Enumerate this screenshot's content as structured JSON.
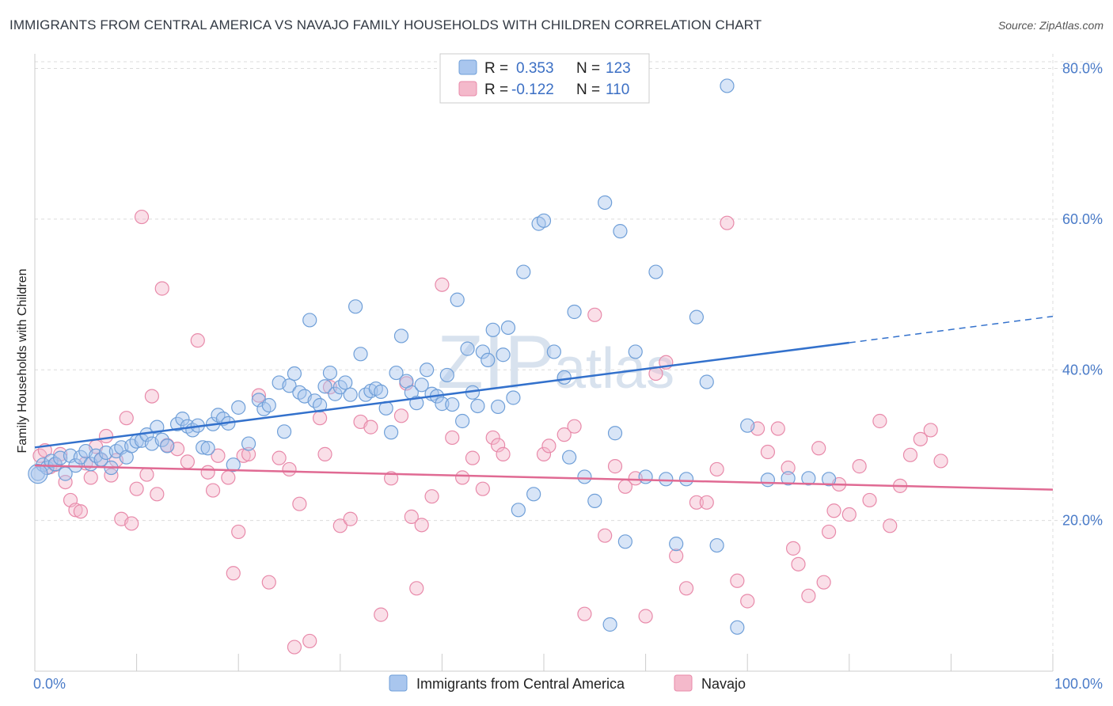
{
  "title": "IMMIGRANTS FROM CENTRAL AMERICA VS NAVAJO FAMILY HOUSEHOLDS WITH CHILDREN CORRELATION CHART",
  "source": "Source: ZipAtlas.com",
  "watermark": {
    "zip": "ZIP",
    "atlas": "atlas"
  },
  "colors": {
    "blue_fill": "#a9c6ee",
    "blue_stroke": "#6f9fd8",
    "blue_line": "#3371cc",
    "pink_fill": "#f4b9cb",
    "pink_stroke": "#e88aaa",
    "pink_line": "#e06a93",
    "grid": "#dcdcdc",
    "axis_label": "#4a7bc8"
  },
  "legend": {
    "rows": [
      {
        "r_label": "R =",
        "r_value": "0.353",
        "n_label": "N =",
        "n_value": "123"
      },
      {
        "r_label": "R =",
        "r_value": "-0.122",
        "n_label": "N =",
        "n_value": "110"
      }
    ]
  },
  "chart_data": {
    "type": "scatter",
    "xlabel": "",
    "ylabel": "Family Households with Children",
    "xlim": [
      0,
      100
    ],
    "ylim": [
      0,
      83
    ],
    "x_tick_labels": [
      "0.0%",
      "100.0%"
    ],
    "y_ticks": [
      20,
      40,
      60,
      80
    ],
    "y_tick_labels": [
      "20.0%",
      "40.0%",
      "60.0%",
      "80.0%"
    ],
    "series": [
      {
        "name": "Immigrants from Central America",
        "color": "blue",
        "trend": {
          "x0": 0,
          "y0": 29.7,
          "x1": 80,
          "y1": 43.6,
          "dash_x1": 100,
          "dash_y1": 47.1
        },
        "points": [
          [
            0.3,
            26.2
          ],
          [
            0.8,
            27.4
          ],
          [
            1.2,
            27.0
          ],
          [
            1.6,
            27.9
          ],
          [
            2.0,
            27.5
          ],
          [
            2.5,
            28.3
          ],
          [
            3.0,
            26.2
          ],
          [
            3.5,
            28.6
          ],
          [
            4.0,
            27.3
          ],
          [
            4.5,
            28.4
          ],
          [
            5.0,
            29.2
          ],
          [
            5.5,
            27.5
          ],
          [
            6.0,
            28.6
          ],
          [
            6.5,
            28.1
          ],
          [
            7.0,
            29.0
          ],
          [
            7.5,
            27.0
          ],
          [
            8.0,
            29.2
          ],
          [
            8.5,
            29.7
          ],
          [
            9.0,
            28.4
          ],
          [
            9.5,
            29.9
          ],
          [
            10.0,
            30.5
          ],
          [
            10.5,
            30.6
          ],
          [
            11.0,
            31.4
          ],
          [
            11.5,
            30.2
          ],
          [
            12.0,
            32.4
          ],
          [
            12.5,
            30.7
          ],
          [
            13.0,
            29.9
          ],
          [
            14.0,
            32.8
          ],
          [
            14.5,
            33.5
          ],
          [
            15.0,
            32.5
          ],
          [
            15.5,
            32.0
          ],
          [
            16.0,
            32.6
          ],
          [
            16.5,
            29.7
          ],
          [
            17.0,
            29.6
          ],
          [
            17.5,
            32.8
          ],
          [
            18.0,
            34.0
          ],
          [
            18.5,
            33.5
          ],
          [
            19.0,
            32.9
          ],
          [
            19.5,
            27.4
          ],
          [
            20.0,
            35.0
          ],
          [
            21.0,
            30.2
          ],
          [
            22.0,
            36.0
          ],
          [
            22.5,
            34.8
          ],
          [
            23.0,
            35.3
          ],
          [
            24.0,
            38.3
          ],
          [
            24.5,
            31.8
          ],
          [
            25.0,
            37.9
          ],
          [
            25.5,
            39.5
          ],
          [
            26.0,
            37.0
          ],
          [
            26.5,
            36.5
          ],
          [
            27.0,
            46.6
          ],
          [
            27.5,
            35.9
          ],
          [
            28.0,
            35.3
          ],
          [
            28.5,
            37.8
          ],
          [
            29.0,
            39.6
          ],
          [
            29.5,
            36.8
          ],
          [
            30.0,
            37.7
          ],
          [
            30.5,
            38.3
          ],
          [
            31.0,
            36.7
          ],
          [
            31.5,
            48.4
          ],
          [
            32.0,
            42.1
          ],
          [
            32.5,
            36.7
          ],
          [
            33.0,
            37.2
          ],
          [
            33.5,
            37.5
          ],
          [
            34.0,
            37.1
          ],
          [
            34.5,
            34.9
          ],
          [
            35.0,
            31.7
          ],
          [
            35.5,
            39.6
          ],
          [
            36.0,
            44.5
          ],
          [
            36.5,
            38.5
          ],
          [
            37.0,
            37.0
          ],
          [
            37.5,
            35.6
          ],
          [
            38.0,
            38.0
          ],
          [
            38.5,
            40.0
          ],
          [
            39.0,
            36.8
          ],
          [
            39.5,
            36.5
          ],
          [
            40.0,
            35.5
          ],
          [
            40.5,
            39.3
          ],
          [
            41.0,
            35.4
          ],
          [
            41.5,
            49.3
          ],
          [
            42.0,
            33.2
          ],
          [
            42.5,
            42.8
          ],
          [
            43.0,
            37.0
          ],
          [
            43.5,
            35.2
          ],
          [
            44.0,
            42.4
          ],
          [
            44.5,
            41.3
          ],
          [
            45.0,
            45.3
          ],
          [
            45.5,
            35.1
          ],
          [
            46.0,
            42.0
          ],
          [
            46.5,
            45.6
          ],
          [
            47.0,
            36.3
          ],
          [
            47.5,
            21.4
          ],
          [
            48.0,
            53.0
          ],
          [
            49.0,
            23.5
          ],
          [
            49.5,
            59.4
          ],
          [
            50.0,
            59.8
          ],
          [
            51.0,
            42.4
          ],
          [
            52.0,
            39.0
          ],
          [
            53.0,
            47.7
          ],
          [
            54.0,
            25.8
          ],
          [
            55.0,
            22.6
          ],
          [
            56.0,
            62.2
          ],
          [
            57.0,
            31.6
          ],
          [
            57.5,
            58.4
          ],
          [
            58.0,
            17.2
          ],
          [
            59.0,
            42.4
          ],
          [
            60.0,
            25.8
          ],
          [
            61.0,
            53.0
          ],
          [
            62.0,
            25.5
          ],
          [
            63.0,
            16.9
          ],
          [
            64.0,
            25.5
          ],
          [
            65.0,
            47.0
          ],
          [
            66.0,
            38.4
          ],
          [
            67.0,
            16.7
          ],
          [
            68.0,
            77.7
          ],
          [
            69.0,
            5.8
          ],
          [
            70.0,
            32.6
          ],
          [
            72.0,
            25.4
          ],
          [
            74.0,
            25.6
          ],
          [
            76.0,
            25.6
          ],
          [
            78.0,
            25.5
          ],
          [
            56.5,
            6.2
          ],
          [
            52.5,
            28.4
          ]
        ]
      },
      {
        "name": "Navajo",
        "color": "pink",
        "trend": {
          "x0": 0,
          "y0": 27.3,
          "x1": 100,
          "y1": 24.1
        },
        "points": [
          [
            0.5,
            28.6
          ],
          [
            1.0,
            29.3
          ],
          [
            1.5,
            27.1
          ],
          [
            2.0,
            27.4
          ],
          [
            2.5,
            28.8
          ],
          [
            3.0,
            25.1
          ],
          [
            3.5,
            22.7
          ],
          [
            4.0,
            21.4
          ],
          [
            4.5,
            21.2
          ],
          [
            5.0,
            27.6
          ],
          [
            5.5,
            25.7
          ],
          [
            6.0,
            29.8
          ],
          [
            6.5,
            28.0
          ],
          [
            7.0,
            31.2
          ],
          [
            7.5,
            26.0
          ],
          [
            8.0,
            28.0
          ],
          [
            8.5,
            20.2
          ],
          [
            9.0,
            33.6
          ],
          [
            9.5,
            19.6
          ],
          [
            10.0,
            24.2
          ],
          [
            10.5,
            60.3
          ],
          [
            11.0,
            26.1
          ],
          [
            11.5,
            36.5
          ],
          [
            12.0,
            23.5
          ],
          [
            12.5,
            50.8
          ],
          [
            13.0,
            30.0
          ],
          [
            14.0,
            29.5
          ],
          [
            15.0,
            27.8
          ],
          [
            16.0,
            43.9
          ],
          [
            17.0,
            26.4
          ],
          [
            17.5,
            24.0
          ],
          [
            18.0,
            28.6
          ],
          [
            19.0,
            25.7
          ],
          [
            19.5,
            13.0
          ],
          [
            20.0,
            18.5
          ],
          [
            20.5,
            28.6
          ],
          [
            21.0,
            28.8
          ],
          [
            22.0,
            36.6
          ],
          [
            23.0,
            11.8
          ],
          [
            24.0,
            28.3
          ],
          [
            25.0,
            26.8
          ],
          [
            25.5,
            3.2
          ],
          [
            26.0,
            22.2
          ],
          [
            27.0,
            4.0
          ],
          [
            28.0,
            33.6
          ],
          [
            28.5,
            28.8
          ],
          [
            29.0,
            37.7
          ],
          [
            30.0,
            19.3
          ],
          [
            31.0,
            20.2
          ],
          [
            32.0,
            33.1
          ],
          [
            33.0,
            32.4
          ],
          [
            34.0,
            7.5
          ],
          [
            35.0,
            25.6
          ],
          [
            36.0,
            33.9
          ],
          [
            36.5,
            38.2
          ],
          [
            37.0,
            20.5
          ],
          [
            37.5,
            11.0
          ],
          [
            38.0,
            19.4
          ],
          [
            39.0,
            23.2
          ],
          [
            40.0,
            51.3
          ],
          [
            41.0,
            31.0
          ],
          [
            42.0,
            25.7
          ],
          [
            43.0,
            28.3
          ],
          [
            44.0,
            24.2
          ],
          [
            45.0,
            31.0
          ],
          [
            45.5,
            30.0
          ],
          [
            46.0,
            28.8
          ],
          [
            50.0,
            28.8
          ],
          [
            50.5,
            29.9
          ],
          [
            52.0,
            31.4
          ],
          [
            53.0,
            32.5
          ],
          [
            54.0,
            7.6
          ],
          [
            55.0,
            47.3
          ],
          [
            56.0,
            18.0
          ],
          [
            57.0,
            27.2
          ],
          [
            58.0,
            24.5
          ],
          [
            59.0,
            25.6
          ],
          [
            60.0,
            7.3
          ],
          [
            61.0,
            39.5
          ],
          [
            62.0,
            41.0
          ],
          [
            63.0,
            15.3
          ],
          [
            64.0,
            11.0
          ],
          [
            65.0,
            22.4
          ],
          [
            66.0,
            22.4
          ],
          [
            67.0,
            26.8
          ],
          [
            68.0,
            59.5
          ],
          [
            69.0,
            12.0
          ],
          [
            70.0,
            9.3
          ],
          [
            71.0,
            32.2
          ],
          [
            72.0,
            29.1
          ],
          [
            73.0,
            32.2
          ],
          [
            74.0,
            27.0
          ],
          [
            74.5,
            16.3
          ],
          [
            75.0,
            14.2
          ],
          [
            76.0,
            10.0
          ],
          [
            77.0,
            29.6
          ],
          [
            77.5,
            11.8
          ],
          [
            78.0,
            18.5
          ],
          [
            78.5,
            21.3
          ],
          [
            79.0,
            24.8
          ],
          [
            80.0,
            20.8
          ],
          [
            81.0,
            27.2
          ],
          [
            82.0,
            22.7
          ],
          [
            83.0,
            33.2
          ],
          [
            84.0,
            19.3
          ],
          [
            85.0,
            24.6
          ],
          [
            86.0,
            28.7
          ],
          [
            87.0,
            30.8
          ],
          [
            88.0,
            32.0
          ],
          [
            89.0,
            27.9
          ]
        ]
      }
    ]
  }
}
